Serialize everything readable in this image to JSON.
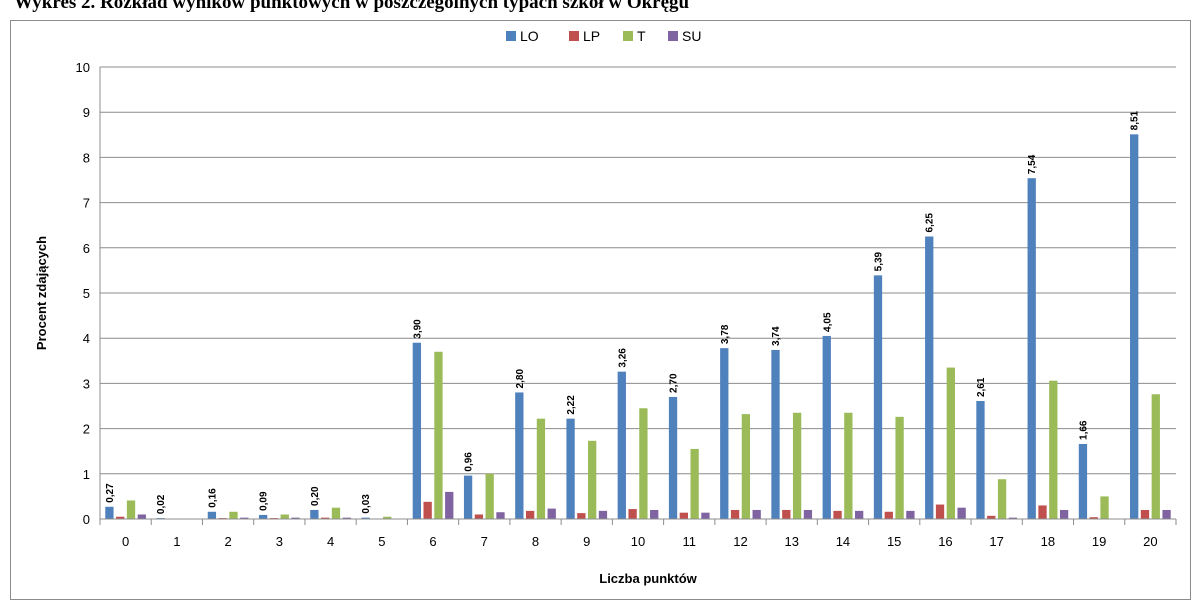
{
  "chart_data": {
    "type": "bar",
    "title": "Wykres 2. Rozkład wyników punktowych w poszczególnych typach szkół w Okręgu",
    "xlabel": "Liczba punktów",
    "ylabel": "Procent zdających",
    "ylim": [
      0,
      10
    ],
    "yticks": [
      "0",
      "1",
      "2",
      "3",
      "4",
      "5",
      "6",
      "7",
      "8",
      "9",
      "10"
    ],
    "grid": true,
    "legend_position": "top",
    "categories": [
      "0",
      "1",
      "2",
      "3",
      "4",
      "5",
      "6",
      "7",
      "8",
      "9",
      "10",
      "11",
      "12",
      "13",
      "14",
      "15",
      "16",
      "17",
      "18",
      "19",
      "20"
    ],
    "series": [
      {
        "name": "LO",
        "color": "#4F81BD",
        "values": [
          0.27,
          0.02,
          0.16,
          0.09,
          0.2,
          0.03,
          3.9,
          0.96,
          2.8,
          2.22,
          3.26,
          2.7,
          3.78,
          3.74,
          4.05,
          5.39,
          6.25,
          2.61,
          7.54,
          1.66,
          8.51
        ],
        "labels": [
          "0,27",
          "0,02",
          "0,16",
          "0,09",
          "0,20",
          "0,03",
          "3,90",
          "0,96",
          "2,80",
          "2,22",
          "3,26",
          "2,70",
          "3,78",
          "3,74",
          "4,05",
          "5,39",
          "6,25",
          "2,61",
          "7,54",
          "1,66",
          "8,51"
        ]
      },
      {
        "name": "LP",
        "color": "#C0504D",
        "values": [
          0.05,
          0.0,
          0.02,
          0.02,
          0.03,
          0.0,
          0.38,
          0.1,
          0.18,
          0.13,
          0.22,
          0.14,
          0.2,
          0.2,
          0.18,
          0.16,
          0.32,
          0.07,
          0.3,
          0.04,
          0.2
        ]
      },
      {
        "name": "T",
        "color": "#9BBB59",
        "values": [
          0.41,
          0.0,
          0.16,
          0.1,
          0.25,
          0.05,
          3.7,
          1.0,
          2.22,
          1.73,
          2.45,
          1.55,
          2.32,
          2.35,
          2.35,
          2.26,
          3.35,
          0.88,
          3.06,
          0.5,
          2.76
        ]
      },
      {
        "name": "SU",
        "color": "#8064A2",
        "values": [
          0.1,
          0.0,
          0.03,
          0.03,
          0.03,
          0.0,
          0.6,
          0.15,
          0.23,
          0.18,
          0.2,
          0.14,
          0.2,
          0.2,
          0.18,
          0.18,
          0.25,
          0.03,
          0.2,
          0.01,
          0.2
        ]
      }
    ]
  }
}
